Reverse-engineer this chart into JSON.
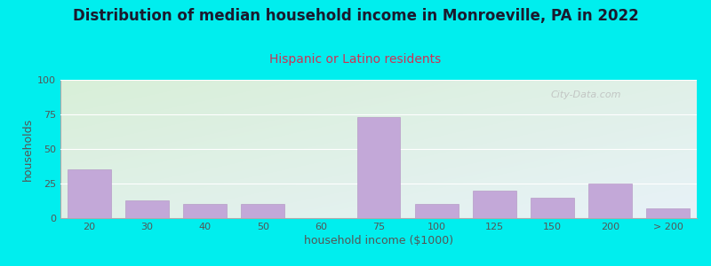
{
  "title": "Distribution of median household income in Monroeville, PA in 2022",
  "subtitle": "Hispanic or Latino residents",
  "xlabel": "household income ($1000)",
  "ylabel": "households",
  "background_outer": "#00EEEE",
  "bar_color": "#C3A8D8",
  "bar_edge_color": "#B090C0",
  "plot_bg_color_topleft": "#D8EFD8",
  "plot_bg_color_bottomright": "#E8F2F8",
  "categories": [
    "20",
    "30",
    "40",
    "50",
    "60",
    "75",
    "100",
    "125",
    "150",
    "200",
    "> 200"
  ],
  "values": [
    35,
    13,
    10,
    10,
    0,
    73,
    10,
    20,
    15,
    25,
    7
  ],
  "bar_positions": [
    1,
    2,
    3,
    4,
    5,
    6,
    7,
    8,
    9,
    10,
    11
  ],
  "bar_width": 0.75,
  "ylim": [
    0,
    100
  ],
  "yticks": [
    0,
    25,
    50,
    75,
    100
  ],
  "xtick_labels": [
    "20",
    "30",
    "40",
    "50",
    "60",
    "75",
    "100",
    "125",
    "150",
    "200",
    "> 200"
  ],
  "title_fontsize": 12,
  "subtitle_fontsize": 10,
  "axis_label_fontsize": 9,
  "tick_fontsize": 8,
  "title_color": "#1A1A2E",
  "subtitle_color": "#CC3355",
  "tick_color": "#555555",
  "watermark": "City-Data.com",
  "watermark_color": "#BBBBBB"
}
